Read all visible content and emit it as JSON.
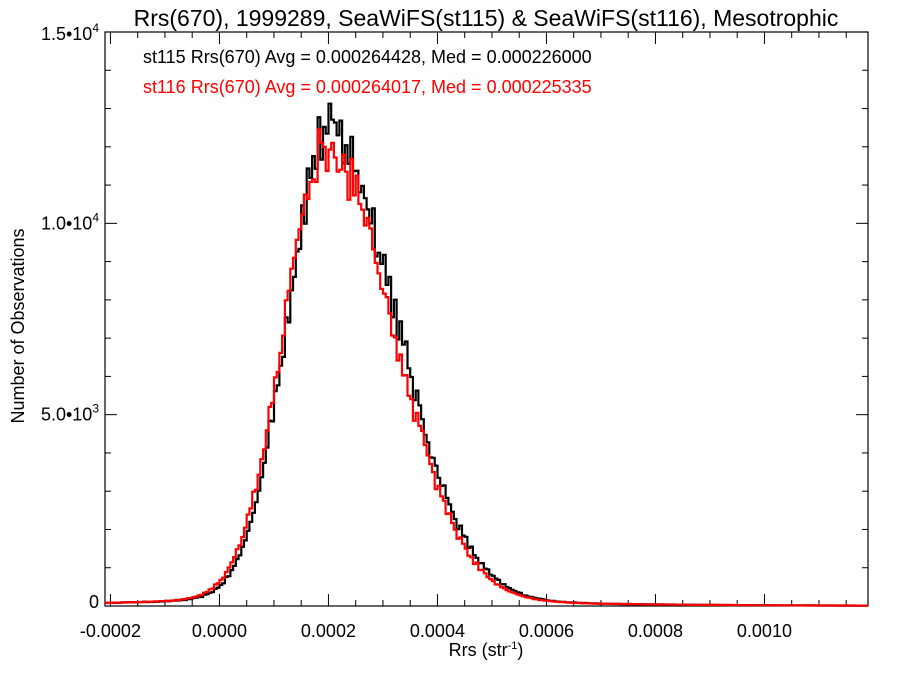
{
  "chart_data": {
    "type": "histogram",
    "title": "Rrs(670), 1999289, SeaWiFS(st115) & SeaWiFS(st116), Mesotrophic",
    "xlabel": "Rrs (str",
    "xlabel_sup": "-1",
    "xlabel_suffix": ")",
    "ylabel": "Number of Observations",
    "xlim": [
      -0.00021,
      0.00119
    ],
    "ylim": [
      0,
      15000
    ],
    "x_ticks": [
      {
        "value": -0.0002,
        "label": "-0.0002"
      },
      {
        "value": 0.0,
        "label": "0.0000"
      },
      {
        "value": 0.0002,
        "label": "0.0002"
      },
      {
        "value": 0.0004,
        "label": "0.0004"
      },
      {
        "value": 0.0006,
        "label": "0.0006"
      },
      {
        "value": 0.0008,
        "label": "0.0008"
      },
      {
        "value": 0.001,
        "label": "0.0010"
      }
    ],
    "y_ticks": [
      {
        "value": 0,
        "label": "0",
        "sup": ""
      },
      {
        "value": 5000,
        "label": "5.0•10",
        "sup": "3"
      },
      {
        "value": 10000,
        "label": "1.0•10",
        "sup": "4"
      },
      {
        "value": 15000,
        "label": "1.5•10",
        "sup": "4"
      }
    ],
    "legend_placement": "top-left",
    "grid": false,
    "series": [
      {
        "name": "st115",
        "color": "#000000",
        "annotation": "st115 Rrs(670) Avg = 0.000264428, Med = 0.000226000",
        "avg": 0.000264428,
        "median": 0.000226
      },
      {
        "name": "st116",
        "color": "#ff0000",
        "annotation": "st116 Rrs(670) Avg = 0.000264017, Med = 0.000225335",
        "avg": 0.000264017,
        "median": 0.000225335
      }
    ],
    "histogram_profile": {
      "bin_width": 5e-06,
      "x_start": -0.00021,
      "x_end": 0.00119,
      "peak_x": [
        0.0002,
        0.000197
      ],
      "peak_y": [
        12100,
        11600
      ],
      "sigma_left": [
        7.5e-05,
        7.8e-05
      ],
      "sigma_right": [
        0.000125,
        0.000123
      ]
    }
  }
}
